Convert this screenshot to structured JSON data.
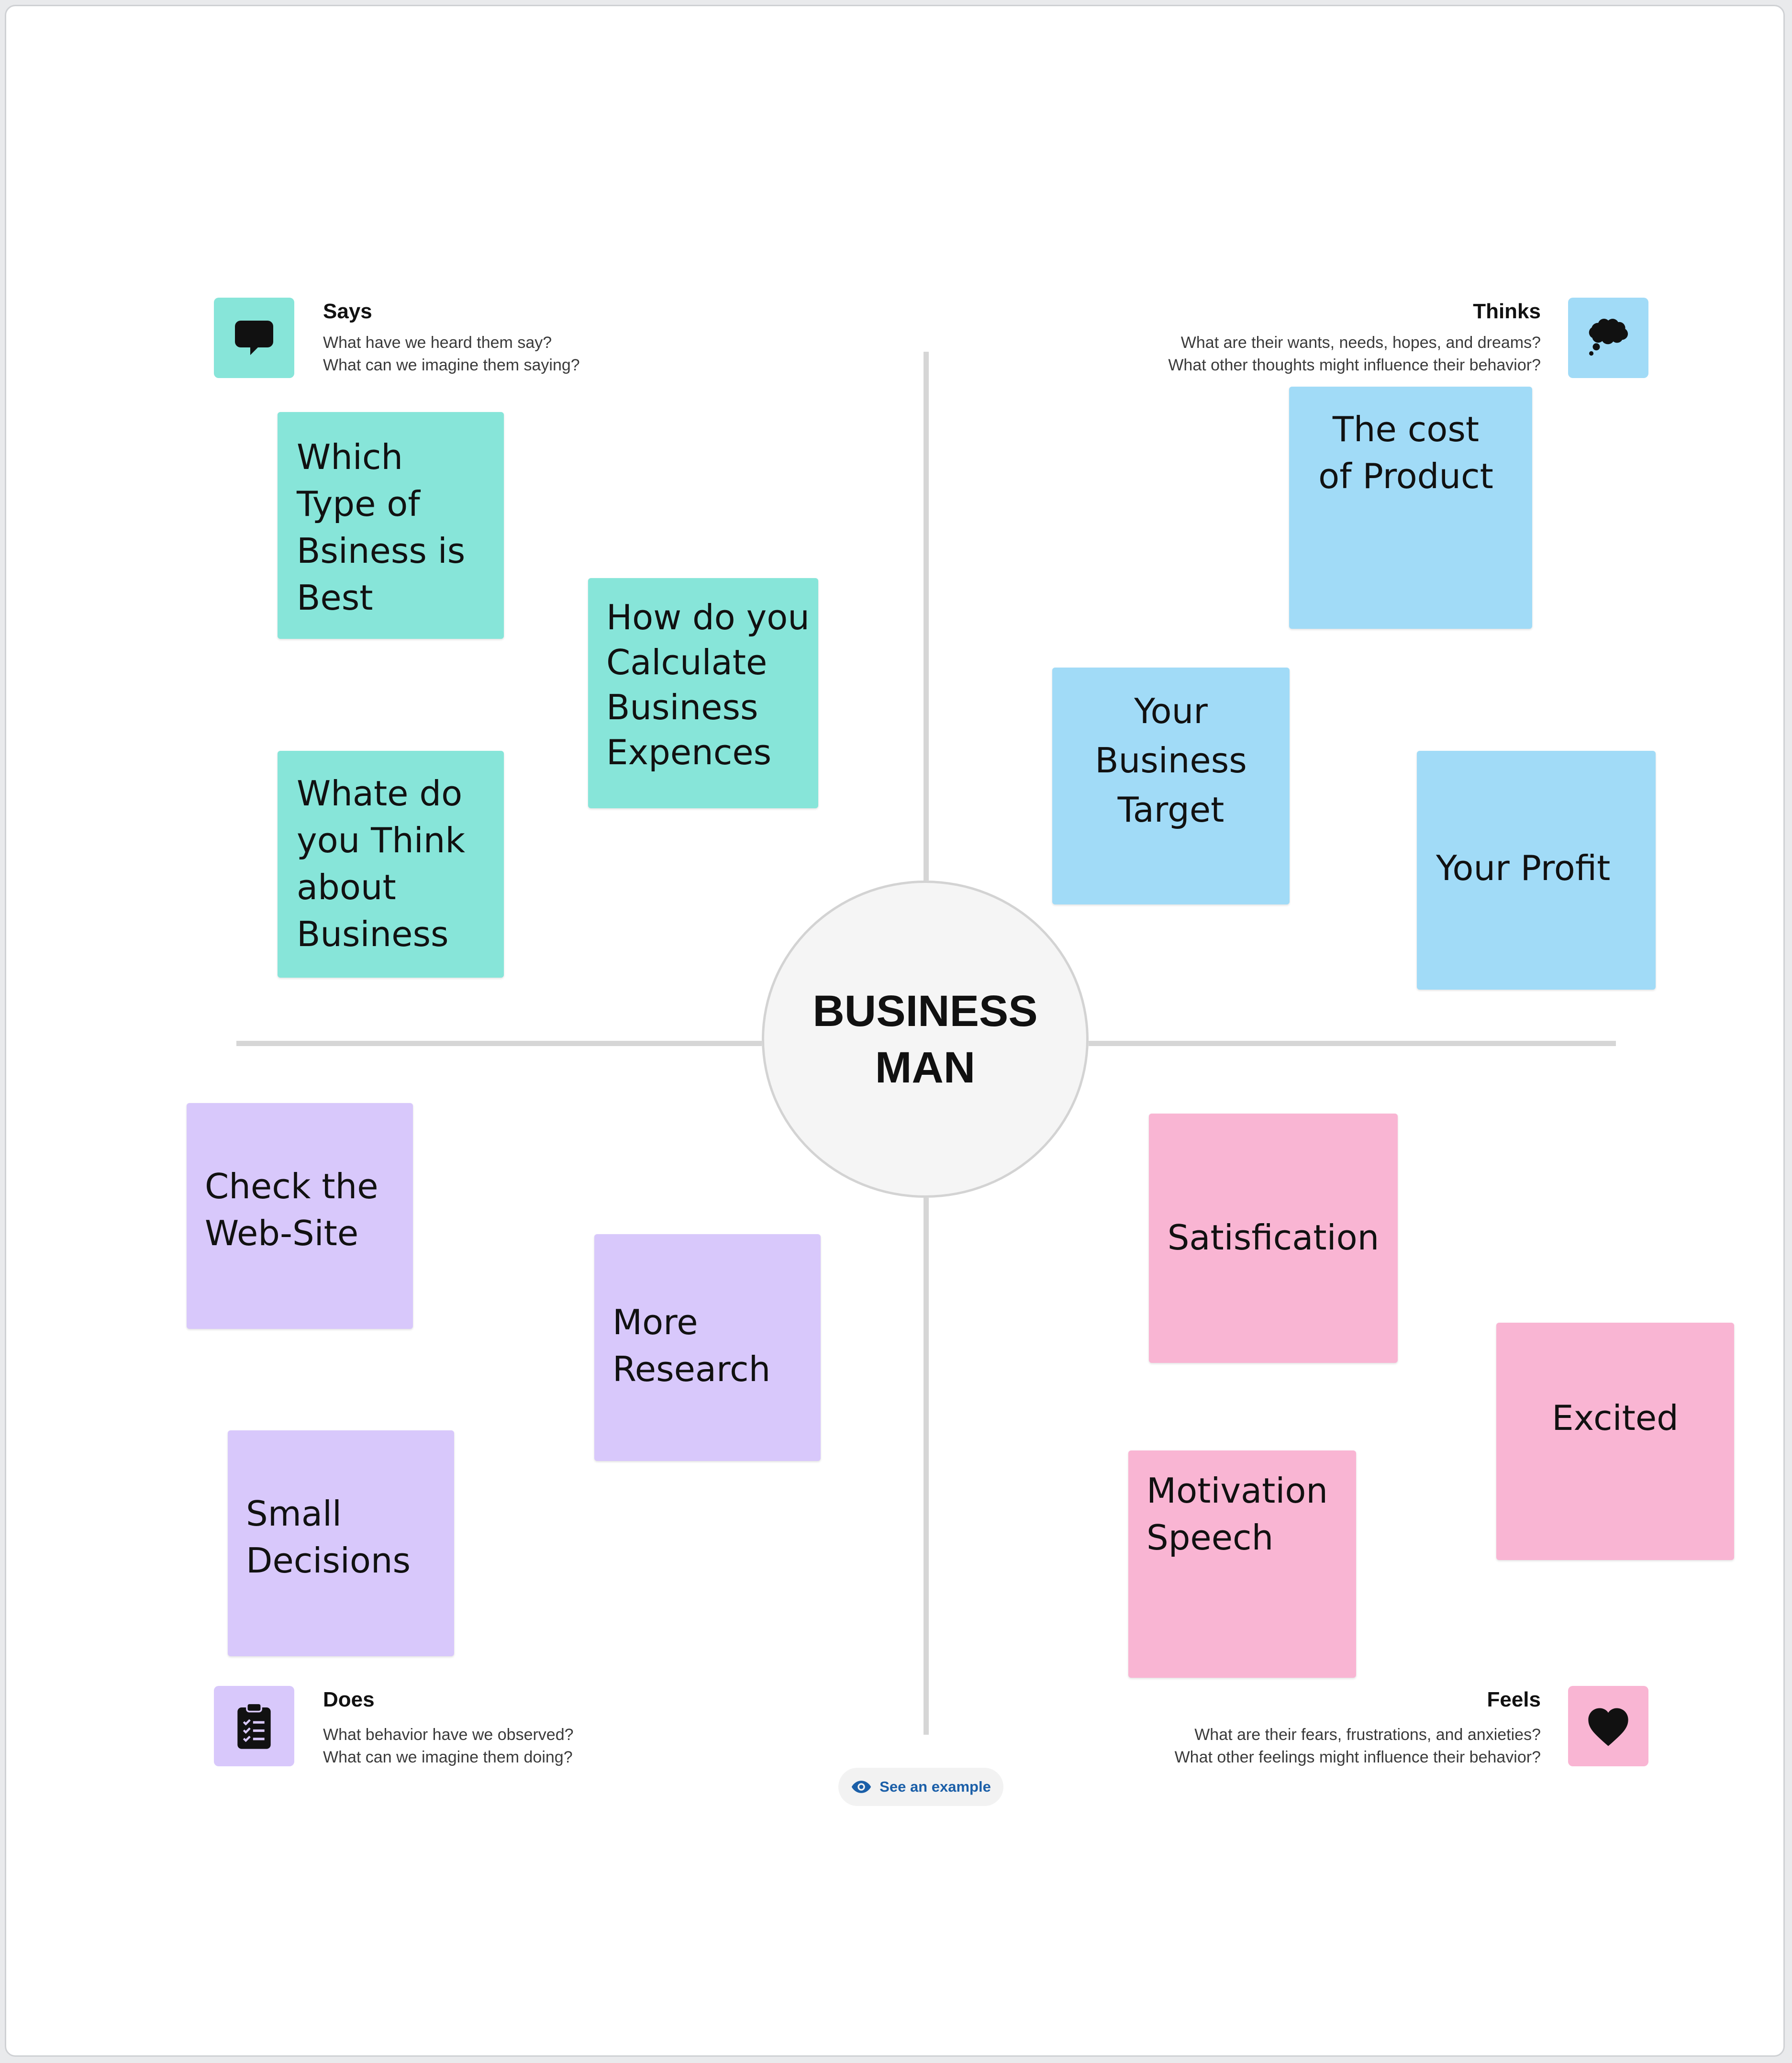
{
  "center": {
    "title": "BUSINESS\nMAN"
  },
  "sections": {
    "says": {
      "title": "Says",
      "q1": "What have we heard them say?",
      "q2": "What can we imagine them saying?",
      "color": "#87e5d9",
      "icon": "speech-bubble-icon"
    },
    "thinks": {
      "title": "Thinks",
      "q1": "What are their wants, needs, hopes, and dreams?",
      "q2": "What other thoughts might influence their behavior?",
      "color": "#a1dbf7",
      "icon": "thought-cloud-icon"
    },
    "does": {
      "title": "Does",
      "q1": "What behavior have we observed?",
      "q2": "What can we imagine them doing?",
      "color": "#d8c8fb",
      "icon": "clipboard-icon"
    },
    "feels": {
      "title": "Feels",
      "q1": "What are their fears, frustrations, and anxieties?",
      "q2": "What other feelings might influence their behavior?",
      "color": "#f9b5d3",
      "icon": "heart-icon"
    }
  },
  "notes": {
    "says": [
      "Which\nType of\nBsiness is\nBest",
      "How do you\nCalculate\nBusiness\nExpences",
      "Whate do\nyou Think\nabout\nBusiness"
    ],
    "thinks": [
      "The  cost\nof Product",
      "Your\nBusiness\nTarget",
      "Your Profit"
    ],
    "does": [
      "Check the\nWeb-Site",
      "More\n   Research",
      "Small\n  Decisions"
    ],
    "feels": [
      "Satisfication",
      "Excited",
      "Motivation\n   Speech"
    ]
  },
  "example_button": {
    "label": "See an example",
    "icon": "eye-icon"
  }
}
